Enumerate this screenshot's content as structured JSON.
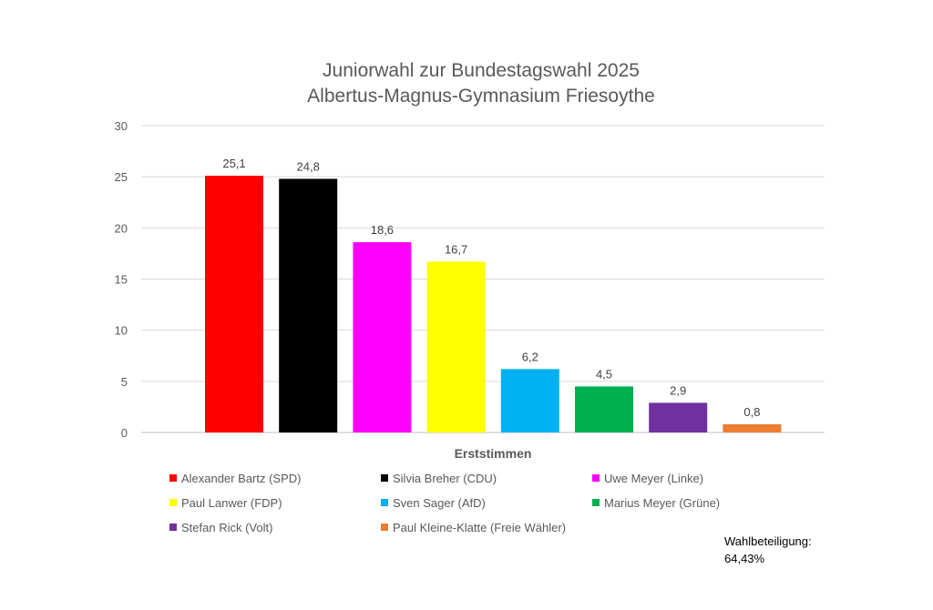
{
  "chart_data": {
    "type": "bar",
    "title": [
      "Juniorwahl zur Bundestagswahl 2025",
      "Albertus-Magnus-Gymnasium Friesoythe"
    ],
    "xlabel": "Erststimmen",
    "ylabel": "",
    "ylim": [
      0,
      30
    ],
    "yticks": [
      0,
      5,
      10,
      15,
      20,
      25,
      30
    ],
    "grid": true,
    "legend_position": "bottom",
    "categories": [
      "Alexander Bartz (SPD)",
      "Silvia Breher (CDU)",
      "Uwe Meyer (Linke)",
      "Paul Lanwer (FDP)",
      "Sven Sager (AfD)",
      "Marius Meyer (Grüne)",
      "Stefan Rick (Volt)",
      "Paul Kleine-Klatte (Freie Wähler)"
    ],
    "values": [
      25.1,
      24.8,
      18.6,
      16.7,
      6.2,
      4.5,
      2.9,
      0.8
    ],
    "value_labels": [
      "25,1",
      "24,8",
      "18,6",
      "16,7",
      "6,2",
      "4,5",
      "2,9",
      "0,8"
    ],
    "colors": [
      "#ff0000",
      "#000000",
      "#ff00ff",
      "#ffff00",
      "#00b0f0",
      "#00b050",
      "#7030a0",
      "#ed7d31"
    ]
  },
  "note": {
    "label": "Wahlbeteiligung:",
    "value": "64,43%"
  }
}
